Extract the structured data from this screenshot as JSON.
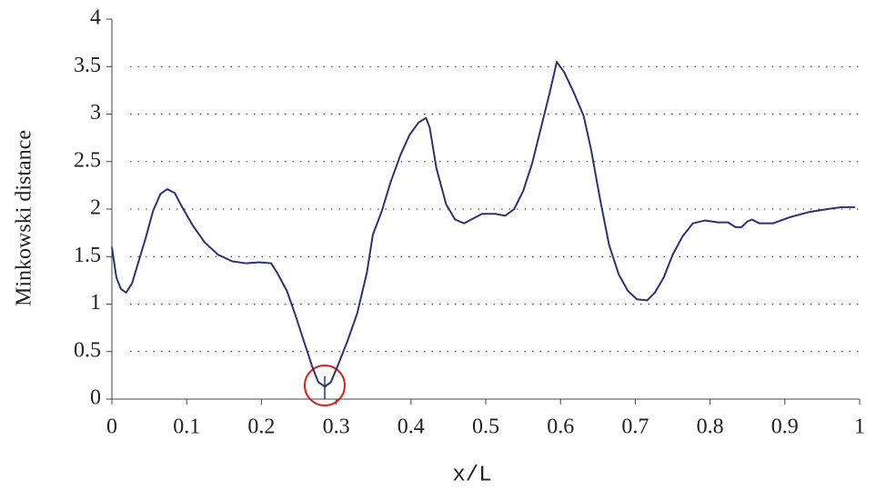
{
  "chart_data": {
    "type": "line",
    "x_label": "x/L",
    "y_label": "Minkowski distance",
    "x": [
      0,
      0.006,
      0.012,
      0.019,
      0.027,
      0.035,
      0.045,
      0.055,
      0.065,
      0.074,
      0.084,
      0.094,
      0.108,
      0.124,
      0.142,
      0.161,
      0.179,
      0.197,
      0.213,
      0.221,
      0.234,
      0.246,
      0.258,
      0.268,
      0.276,
      0.285,
      0.293,
      0.303,
      0.315,
      0.328,
      0.341,
      0.349,
      0.361,
      0.373,
      0.386,
      0.398,
      0.41,
      0.42,
      0.425,
      0.434,
      0.447,
      0.459,
      0.471,
      0.483,
      0.495,
      0.513,
      0.526,
      0.538,
      0.55,
      0.562,
      0.574,
      0.586,
      0.595,
      0.605,
      0.617,
      0.631,
      0.641,
      0.653,
      0.665,
      0.678,
      0.69,
      0.702,
      0.716,
      0.726,
      0.738,
      0.75,
      0.763,
      0.777,
      0.793,
      0.811,
      0.824,
      0.834,
      0.842,
      0.85,
      0.856,
      0.866,
      0.884,
      0.909,
      0.933,
      0.957,
      0.976,
      0.994
    ],
    "series": [
      {
        "color": "#2e3274",
        "values": [
          1.6,
          1.28,
          1.16,
          1.12,
          1.22,
          1.43,
          1.69,
          1.98,
          2.16,
          2.21,
          2.17,
          2.02,
          1.83,
          1.65,
          1.52,
          1.45,
          1.43,
          1.44,
          1.43,
          1.33,
          1.14,
          0.87,
          0.58,
          0.34,
          0.18,
          0.13,
          0.18,
          0.37,
          0.61,
          0.9,
          1.33,
          1.73,
          1.98,
          2.29,
          2.57,
          2.78,
          2.91,
          2.96,
          2.86,
          2.43,
          2.05,
          1.89,
          1.85,
          1.9,
          1.95,
          1.95,
          1.93,
          2.0,
          2.19,
          2.48,
          2.86,
          3.24,
          3.55,
          3.44,
          3.24,
          2.98,
          2.62,
          2.1,
          1.62,
          1.31,
          1.14,
          1.05,
          1.04,
          1.12,
          1.28,
          1.52,
          1.71,
          1.85,
          1.88,
          1.86,
          1.86,
          1.81,
          1.81,
          1.87,
          1.89,
          1.85,
          1.85,
          1.92,
          1.97,
          2.0,
          2.02,
          2.02
        ]
      }
    ],
    "xlim": [
      0,
      1
    ],
    "xticks": [
      0,
      0.1,
      0.2,
      0.3,
      0.4,
      0.5,
      0.6,
      0.7,
      0.8,
      0.9,
      1
    ],
    "ylim": [
      0,
      4
    ],
    "yticks": [
      0,
      0.5,
      1,
      1.5,
      2,
      2.5,
      3,
      3.5,
      4
    ],
    "grid": true
  }
}
